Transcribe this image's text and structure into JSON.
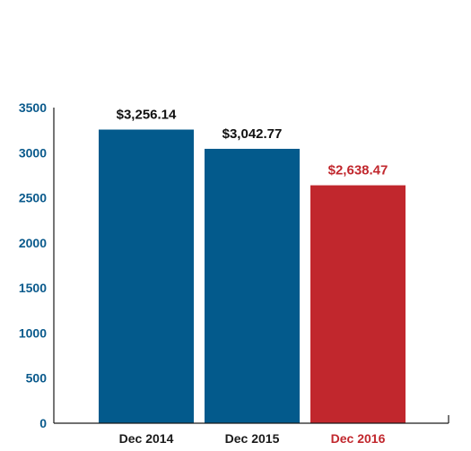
{
  "chart_data": {
    "type": "bar",
    "title": "",
    "xlabel": "",
    "ylabel": "",
    "categories": [
      "Dec 2014",
      "Dec 2015",
      "Dec 2016"
    ],
    "values": [
      3256.14,
      3042.77,
      2638.47
    ],
    "value_labels": [
      "$3,256.14",
      "$3,042.77",
      "$2,638.47"
    ],
    "ylim": [
      0,
      3500
    ],
    "yticks": [
      0,
      500,
      1000,
      1500,
      2000,
      2500,
      3000,
      3500
    ],
    "grid": false,
    "legend": "none",
    "colors": {
      "bar_default": "#035a8c",
      "bar_highlight": "#c1272d",
      "axis": "#1a1a1a",
      "tick_label": "#0a5a8c",
      "category_label": "#1a1a1a",
      "highlight_text": "#c1272d"
    },
    "highlight_index": 2
  }
}
